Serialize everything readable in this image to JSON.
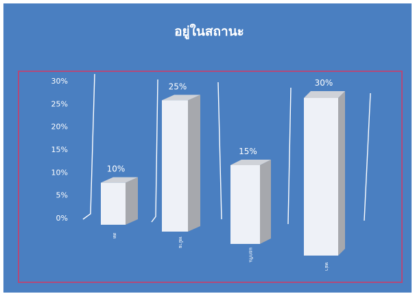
{
  "chart_data": {
    "type": "bar",
    "title": "อยู่ในสถานะ",
    "categories": [
      "สด",
      "หม้าย",
      "แยกกัน",
      "หย่า"
    ],
    "values": [
      10,
      25,
      15,
      30
    ],
    "data_labels": [
      "10%",
      "25%",
      "15%",
      "30%"
    ],
    "y_ticks": [
      "0%",
      "5%",
      "10%",
      "15%",
      "20%",
      "25%",
      "30%"
    ],
    "ylim": [
      0,
      30
    ],
    "xlabel": "",
    "ylabel": "",
    "style": "3d-column",
    "grid": true,
    "legend": "none"
  },
  "colors": {
    "background": "#4a7fc1",
    "bar_front": "#eef1f7",
    "bar_side": "#a6a8ad",
    "bar_top": "#cfd2d8",
    "selection_border": "#b2497a",
    "text": "#ffffff"
  }
}
